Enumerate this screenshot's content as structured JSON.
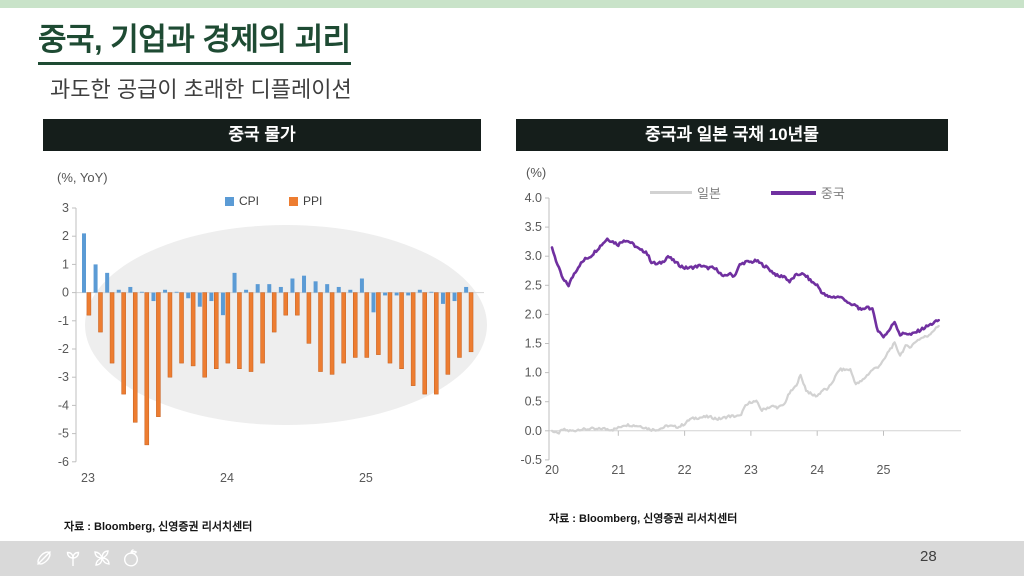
{
  "page": {
    "title": "중국, 기업과 경제의 괴리",
    "subtitle": "과도한 공급이 초래한 디플레이션",
    "page_number": "28"
  },
  "colors": {
    "accent_green": "#1e4b33",
    "strip_green": "#c9e3c9",
    "header_bg": "#151e1b",
    "cpi_blue": "#5b9bd5",
    "ppi_orange": "#ed7d31",
    "japan_gray": "#d2d2d2",
    "china_purple": "#7030a0",
    "footer_gray": "#d9d9d9",
    "highlight_gray": "#eeeeee"
  },
  "chart_data": [
    {
      "type": "bar",
      "title": "중국 물가",
      "unit_label": "(%, YoY)",
      "source": "자료 : Bloomberg, 신영증권 리서치센터",
      "ylim": [
        -6,
        3
      ],
      "ytick_step": 1,
      "xticks": [
        {
          "label": "23",
          "month_index": 0
        },
        {
          "label": "24",
          "month_index": 12
        },
        {
          "label": "25",
          "month_index": 24
        }
      ],
      "categories": [
        "2023-01",
        "2023-02",
        "2023-03",
        "2023-04",
        "2023-05",
        "2023-06",
        "2023-07",
        "2023-08",
        "2023-09",
        "2023-10",
        "2023-11",
        "2023-12",
        "2024-01",
        "2024-02",
        "2024-03",
        "2024-04",
        "2024-05",
        "2024-06",
        "2024-07",
        "2024-08",
        "2024-09",
        "2024-10",
        "2024-11",
        "2024-12",
        "2025-01",
        "2025-02",
        "2025-03",
        "2025-04",
        "2025-05",
        "2025-06",
        "2025-07",
        "2025-08",
        "2025-09",
        "2025-10"
      ],
      "series": [
        {
          "name": "CPI",
          "color": "#5b9bd5",
          "values": [
            2.1,
            1.0,
            0.7,
            0.1,
            0.2,
            0.0,
            -0.3,
            0.1,
            0.0,
            -0.2,
            -0.5,
            -0.3,
            -0.8,
            0.7,
            0.1,
            0.3,
            0.3,
            0.2,
            0.5,
            0.6,
            0.4,
            0.3,
            0.2,
            0.1,
            0.5,
            -0.7,
            -0.1,
            -0.1,
            -0.1,
            0.1,
            0.0,
            -0.4,
            -0.3,
            0.2
          ]
        },
        {
          "name": "PPI",
          "color": "#ed7d31",
          "values": [
            -0.8,
            -1.4,
            -2.5,
            -3.6,
            -4.6,
            -5.4,
            -4.4,
            -3.0,
            -2.5,
            -2.6,
            -3.0,
            -2.7,
            -2.5,
            -2.7,
            -2.8,
            -2.5,
            -1.4,
            -0.8,
            -0.8,
            -1.8,
            -2.8,
            -2.9,
            -2.5,
            -2.3,
            -2.3,
            -2.2,
            -2.5,
            -2.7,
            -3.3,
            -3.6,
            -3.6,
            -2.9,
            -2.3,
            -2.1
          ]
        }
      ],
      "annotations": {
        "highlight_ellipse": "gray oval highlighting the prolonged deflation period"
      }
    },
    {
      "type": "line",
      "title": "중국과 일본 국채 10년물",
      "unit_label": "(%)",
      "source": "자료 : Bloomberg, 신영증권 리서치센터",
      "ylim": [
        -0.5,
        4.0
      ],
      "ytick_step": 0.5,
      "x_start": "2020-01",
      "x_interval": "monthly",
      "xticks": [
        "20",
        "21",
        "22",
        "23",
        "24",
        "25"
      ],
      "series": [
        {
          "name": "일본",
          "color": "#d2d2d2",
          "values": [
            0.0,
            -0.05,
            0.02,
            0.0,
            0.0,
            0.03,
            0.02,
            0.04,
            0.02,
            0.04,
            0.03,
            0.02,
            0.05,
            0.1,
            0.1,
            0.09,
            0.08,
            0.05,
            0.02,
            0.02,
            0.05,
            0.09,
            0.07,
            0.07,
            0.12,
            0.2,
            0.22,
            0.23,
            0.24,
            0.23,
            0.2,
            0.22,
            0.25,
            0.25,
            0.25,
            0.42,
            0.5,
            0.5,
            0.35,
            0.4,
            0.42,
            0.4,
            0.45,
            0.65,
            0.75,
            0.95,
            0.7,
            0.62,
            0.6,
            0.7,
            0.72,
            0.88,
            1.05,
            1.05,
            1.05,
            0.8,
            0.85,
            0.95,
            1.05,
            1.1,
            1.2,
            1.38,
            1.5,
            1.3,
            1.45,
            1.45,
            1.55,
            1.6,
            1.63,
            1.72,
            1.8
          ]
        },
        {
          "name": "중국",
          "color": "#7030a0",
          "values": [
            3.15,
            2.85,
            2.6,
            2.5,
            2.7,
            2.85,
            2.95,
            3.0,
            3.1,
            3.2,
            3.3,
            3.25,
            3.2,
            3.28,
            3.25,
            3.18,
            3.1,
            3.08,
            2.9,
            2.86,
            2.9,
            3.0,
            2.92,
            2.85,
            2.8,
            2.8,
            2.82,
            2.84,
            2.8,
            2.8,
            2.76,
            2.64,
            2.7,
            2.66,
            2.85,
            2.9,
            2.9,
            2.92,
            2.86,
            2.8,
            2.72,
            2.65,
            2.66,
            2.56,
            2.66,
            2.7,
            2.66,
            2.56,
            2.5,
            2.36,
            2.3,
            2.3,
            2.3,
            2.26,
            2.16,
            2.16,
            2.06,
            2.14,
            2.08,
            1.72,
            1.62,
            1.72,
            1.88,
            1.65,
            1.68,
            1.65,
            1.7,
            1.75,
            1.8,
            1.85,
            1.9
          ]
        }
      ]
    }
  ]
}
